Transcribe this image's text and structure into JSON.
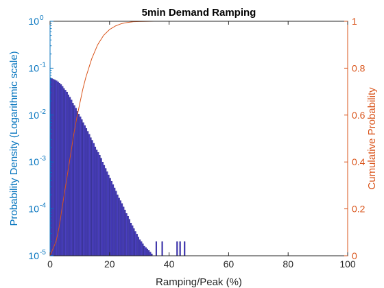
{
  "chart_data": {
    "type": "bar",
    "title": "5min Demand Ramping",
    "xlabel": "Ramping/Peak (%)",
    "ylabel_left": "Probability Density (Logarithmic scale)",
    "ylabel_right": "Cumulative Probability",
    "xlim": [
      0,
      100
    ],
    "ylim_left": [
      1e-05,
      1
    ],
    "ylim_right": [
      0,
      1
    ],
    "left_scale": "log",
    "x_ticks": [
      0,
      20,
      40,
      60,
      80,
      100
    ],
    "left_tick_bases": [
      "10",
      "10",
      "10",
      "10",
      "10",
      "10"
    ],
    "left_tick_exps": [
      "-5",
      "-4",
      "-3",
      "-2",
      "-1",
      "0"
    ],
    "left_tick_values": [
      1e-05,
      0.0001,
      0.001,
      0.01,
      0.1,
      1
    ],
    "right_ticks": [
      "0",
      "0.2",
      "0.4",
      "0.6",
      "0.8",
      "1"
    ],
    "right_tick_values": [
      0,
      0.2,
      0.4,
      0.6,
      0.8,
      1
    ],
    "grid": false,
    "colors": {
      "bar_fill": "#4a3fc0",
      "bar_edge": "#1f1a80",
      "left_axis": "#0072bd",
      "right_axis": "#d95319",
      "frame": "#262626"
    },
    "series": [
      {
        "name": "Probability Density",
        "kind": "bar",
        "bin_width": 0.5,
        "bin_start": 0,
        "values": [
          0.062,
          0.06,
          0.058,
          0.056,
          0.054,
          0.051,
          0.048,
          0.045,
          0.041,
          0.037,
          0.034,
          0.031,
          0.027,
          0.024,
          0.021,
          0.018,
          0.016,
          0.014,
          0.012,
          0.0105,
          0.0092,
          0.008,
          0.0069,
          0.006,
          0.0052,
          0.0045,
          0.0039,
          0.0033,
          0.0029,
          0.0025,
          0.0021,
          0.0018,
          0.0016,
          0.0014,
          0.0012,
          0.001,
          0.00085,
          0.00073,
          0.00062,
          0.00053,
          0.00045,
          0.00039,
          0.00033,
          0.00028,
          0.00024,
          0.0002,
          0.00017,
          0.00015,
          0.00013,
          0.00011,
          9.5e-05,
          8e-05,
          7e-05,
          6e-05,
          5e-05,
          4.4e-05,
          3.8e-05,
          3.3e-05,
          2.9e-05,
          2.5e-05,
          2.2e-05,
          2e-05,
          1.8e-05,
          1.6e-05,
          1.5e-05,
          1.4e-05,
          1.3e-05,
          1.2e-05,
          1.1e-05,
          1e-05,
          1e-05,
          1e-05,
          1e-05,
          1e-05,
          1e-05,
          1e-05,
          1e-05,
          1e-05,
          1e-05,
          1e-05,
          1e-05,
          1e-05,
          1e-05,
          1e-05,
          1e-05,
          1e-05,
          1e-05,
          1e-05,
          1e-05,
          1e-05,
          1e-05
        ]
      },
      {
        "name": "Cumulative Probability",
        "kind": "line",
        "x": [
          0,
          1,
          2,
          3,
          4,
          5,
          6,
          7,
          8,
          9,
          10,
          11,
          12,
          14,
          16,
          18,
          20,
          22,
          24,
          26,
          28,
          30,
          35,
          40,
          45,
          50,
          60,
          70,
          80,
          90,
          100
        ],
        "y": [
          0,
          0.03,
          0.06,
          0.12,
          0.2,
          0.28,
          0.36,
          0.44,
          0.52,
          0.59,
          0.65,
          0.71,
          0.76,
          0.84,
          0.9,
          0.94,
          0.965,
          0.98,
          0.99,
          0.995,
          0.998,
          0.999,
          1,
          1,
          1,
          1,
          1,
          1,
          1,
          1,
          1
        ]
      }
    ]
  }
}
